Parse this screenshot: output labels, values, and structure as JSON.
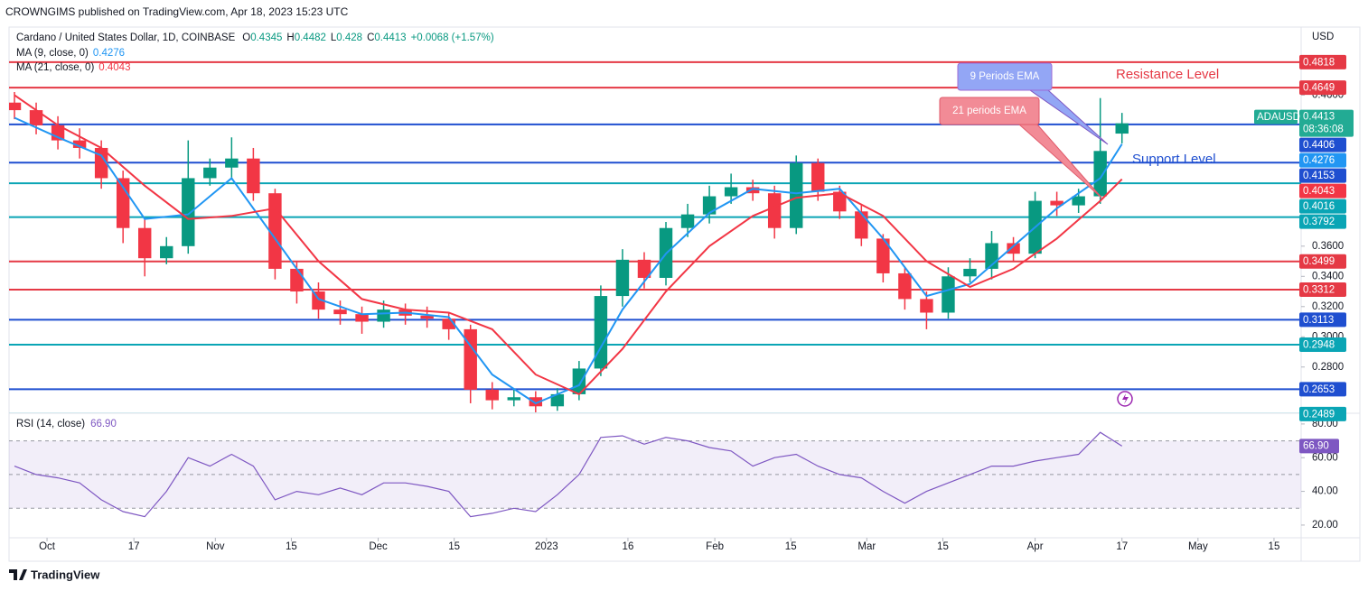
{
  "header": "CROWNGIMS published on TradingView.com, Apr 18, 2023 15:23 UTC",
  "footer": "TradingView",
  "chart_data": [
    {
      "type": "candlestick",
      "title": "Cardano / United States Dollar, 1D, COINBASE",
      "currency": "USD",
      "ohlc_keys": [
        "O",
        "H",
        "L",
        "C"
      ],
      "change": "+0.0068 (+1.57%)",
      "symbol": "ADAUSD",
      "countdown": "08:36:08",
      "up_color": "#089981",
      "down_color": "#f23645",
      "x": [
        -6,
        -2,
        2,
        6,
        10,
        14,
        18,
        22,
        26,
        30,
        34,
        38,
        42,
        46,
        50,
        54,
        58,
        62,
        66,
        70,
        74,
        78,
        82,
        86,
        90,
        94,
        98,
        102,
        106,
        110,
        114,
        118,
        122,
        126,
        130,
        134,
        138,
        142,
        146,
        150,
        154,
        158,
        162,
        166,
        170,
        174,
        178,
        182,
        186,
        190,
        194,
        198
      ],
      "open": [
        0.455,
        0.45,
        0.44,
        0.43,
        0.425,
        0.405,
        0.372,
        0.352,
        0.36,
        0.405,
        0.412,
        0.418,
        0.395,
        0.345,
        0.33,
        0.318,
        0.315,
        0.31,
        0.318,
        0.314,
        0.312,
        0.305,
        0.265,
        0.258,
        0.26,
        0.254,
        0.262,
        0.279,
        0.327,
        0.351,
        0.339,
        0.372,
        0.381,
        0.393,
        0.399,
        0.395,
        0.372,
        0.415,
        0.396,
        0.383,
        0.365,
        0.342,
        0.325,
        0.316,
        0.34,
        0.345,
        0.362,
        0.355,
        0.39,
        0.387,
        0.393,
        0.4345
      ],
      "high": [
        0.462,
        0.455,
        0.446,
        0.438,
        0.43,
        0.41,
        0.378,
        0.366,
        0.43,
        0.418,
        0.432,
        0.425,
        0.398,
        0.35,
        0.336,
        0.324,
        0.32,
        0.324,
        0.322,
        0.32,
        0.316,
        0.308,
        0.27,
        0.266,
        0.264,
        0.266,
        0.284,
        0.334,
        0.358,
        0.356,
        0.376,
        0.388,
        0.4,
        0.408,
        0.404,
        0.4,
        0.42,
        0.418,
        0.4,
        0.388,
        0.368,
        0.346,
        0.33,
        0.346,
        0.352,
        0.37,
        0.366,
        0.396,
        0.396,
        0.398,
        0.458,
        0.4482
      ],
      "low": [
        0.444,
        0.434,
        0.424,
        0.418,
        0.398,
        0.362,
        0.34,
        0.348,
        0.355,
        0.4,
        0.404,
        0.39,
        0.338,
        0.322,
        0.312,
        0.308,
        0.302,
        0.306,
        0.308,
        0.306,
        0.298,
        0.256,
        0.252,
        0.254,
        0.25,
        0.251,
        0.258,
        0.274,
        0.32,
        0.332,
        0.334,
        0.366,
        0.375,
        0.388,
        0.39,
        0.365,
        0.368,
        0.39,
        0.378,
        0.36,
        0.336,
        0.318,
        0.305,
        0.312,
        0.336,
        0.338,
        0.35,
        0.352,
        0.38,
        0.382,
        0.388,
        0.428
      ],
      "close": [
        0.45,
        0.44,
        0.43,
        0.425,
        0.405,
        0.372,
        0.352,
        0.36,
        0.405,
        0.412,
        0.418,
        0.395,
        0.345,
        0.33,
        0.318,
        0.315,
        0.31,
        0.318,
        0.314,
        0.312,
        0.305,
        0.265,
        0.258,
        0.26,
        0.254,
        0.262,
        0.279,
        0.327,
        0.351,
        0.339,
        0.372,
        0.381,
        0.393,
        0.399,
        0.395,
        0.372,
        0.415,
        0.396,
        0.383,
        0.365,
        0.342,
        0.325,
        0.316,
        0.34,
        0.345,
        0.362,
        0.355,
        0.39,
        0.387,
        0.393,
        0.423,
        0.4413
      ],
      "price_color": "#22ab94",
      "series": [
        {
          "name": "MA (9, close, 0)",
          "color": "#2196f3",
          "x": [
            -6,
            2,
            10,
            18,
            26,
            34,
            42,
            50,
            58,
            66,
            74,
            82,
            90,
            98,
            106,
            114,
            122,
            130,
            138,
            146,
            154,
            162,
            170,
            178,
            186,
            194,
            198
          ],
          "values": [
            0.445,
            0.432,
            0.42,
            0.378,
            0.381,
            0.405,
            0.365,
            0.325,
            0.315,
            0.316,
            0.313,
            0.275,
            0.256,
            0.268,
            0.318,
            0.355,
            0.382,
            0.398,
            0.395,
            0.398,
            0.365,
            0.327,
            0.335,
            0.36,
            0.385,
            0.405,
            0.4276
          ]
        },
        {
          "name": "MA (21, close, 0)",
          "color": "#f23645",
          "x": [
            -6,
            2,
            10,
            18,
            26,
            34,
            42,
            50,
            58,
            66,
            74,
            82,
            90,
            98,
            106,
            114,
            122,
            130,
            138,
            146,
            154,
            162,
            170,
            178,
            186,
            194,
            198
          ],
          "values": [
            0.46,
            0.44,
            0.425,
            0.4,
            0.378,
            0.38,
            0.385,
            0.35,
            0.325,
            0.318,
            0.316,
            0.305,
            0.275,
            0.262,
            0.292,
            0.33,
            0.36,
            0.38,
            0.392,
            0.395,
            0.38,
            0.35,
            0.333,
            0.345,
            0.365,
            0.39,
            0.4043
          ]
        }
      ],
      "levels": [
        {
          "value": 0.4818,
          "color": "#e53945"
        },
        {
          "value": 0.4649,
          "color": "#e53945"
        },
        {
          "value": 0.4406,
          "color": "#1f4fd0"
        },
        {
          "value": 0.4153,
          "color": "#1f4fd0"
        },
        {
          "value": 0.4016,
          "color": "#0aa5b5"
        },
        {
          "value": 0.3792,
          "color": "#0aa5b5"
        },
        {
          "value": 0.3499,
          "color": "#e53945"
        },
        {
          "value": 0.3312,
          "color": "#e53945"
        },
        {
          "value": 0.3113,
          "color": "#1f4fd0"
        },
        {
          "value": 0.2948,
          "color": "#0aa5b5"
        },
        {
          "value": 0.2653,
          "color": "#1f4fd0"
        },
        {
          "value": 0.2489,
          "color": "#0aa5b5"
        }
      ],
      "annotations": [
        "9 Periods EMA",
        "21 periods EMA",
        "Resistance Level",
        "Support Level"
      ],
      "xlim": [
        -7,
        231
      ],
      "xticks": [
        {
          "value": 0,
          "label": "Oct"
        },
        {
          "value": 16,
          "label": "17"
        },
        {
          "value": 31,
          "label": "Nov"
        },
        {
          "value": 45,
          "label": "15"
        },
        {
          "value": 61,
          "label": "Dec"
        },
        {
          "value": 75,
          "label": "15"
        },
        {
          "value": 92,
          "label": "2023"
        },
        {
          "value": 107,
          "label": "16"
        },
        {
          "value": 123,
          "label": "Feb"
        },
        {
          "value": 137,
          "label": "15"
        },
        {
          "value": 151,
          "label": "Mar"
        },
        {
          "value": 165,
          "label": "15"
        },
        {
          "value": 182,
          "label": "Apr"
        },
        {
          "value": 198,
          "label": "17"
        },
        {
          "value": 212,
          "label": "May"
        },
        {
          "value": 226,
          "label": "15"
        }
      ],
      "ylim": [
        0.25,
        0.505
      ],
      "yticks": [
        {
          "value": 0.28,
          "label": "0.2800"
        },
        {
          "value": 0.3,
          "label": "0.3000"
        },
        {
          "value": 0.32,
          "label": "0.3200"
        },
        {
          "value": 0.34,
          "label": "0.3400"
        },
        {
          "value": 0.36,
          "label": "0.3600"
        },
        {
          "value": 0.46,
          "label": "0.4600"
        }
      ]
    },
    {
      "type": "line",
      "name": "RSI (14, close)",
      "color": "#7e57c2",
      "current_label": "66.90",
      "x": [
        -6,
        -2,
        2,
        6,
        10,
        14,
        18,
        22,
        26,
        30,
        34,
        38,
        42,
        46,
        50,
        54,
        58,
        62,
        66,
        70,
        74,
        78,
        82,
        86,
        90,
        94,
        98,
        102,
        106,
        110,
        114,
        118,
        122,
        126,
        130,
        134,
        138,
        142,
        146,
        150,
        154,
        158,
        162,
        166,
        170,
        174,
        178,
        182,
        186,
        190,
        194,
        198
      ],
      "values": [
        55,
        50,
        48,
        45,
        35,
        28,
        25,
        40,
        60,
        55,
        62,
        55,
        35,
        40,
        38,
        42,
        38,
        45,
        45,
        43,
        40,
        25,
        27,
        30,
        28,
        38,
        50,
        72,
        73,
        68,
        72,
        70,
        66,
        64,
        55,
        60,
        62,
        55,
        50,
        48,
        40,
        33,
        40,
        45,
        50,
        55,
        55,
        58,
        60,
        62,
        75,
        66.9
      ],
      "bands": [
        70,
        50,
        30
      ],
      "ylim": [
        13,
        85.3
      ],
      "yticks": [
        {
          "value": 80,
          "label": "80.00"
        },
        {
          "value": 60,
          "label": "60.00"
        },
        {
          "value": 40,
          "label": "40.00"
        },
        {
          "value": 20,
          "label": "20.00"
        }
      ]
    }
  ]
}
